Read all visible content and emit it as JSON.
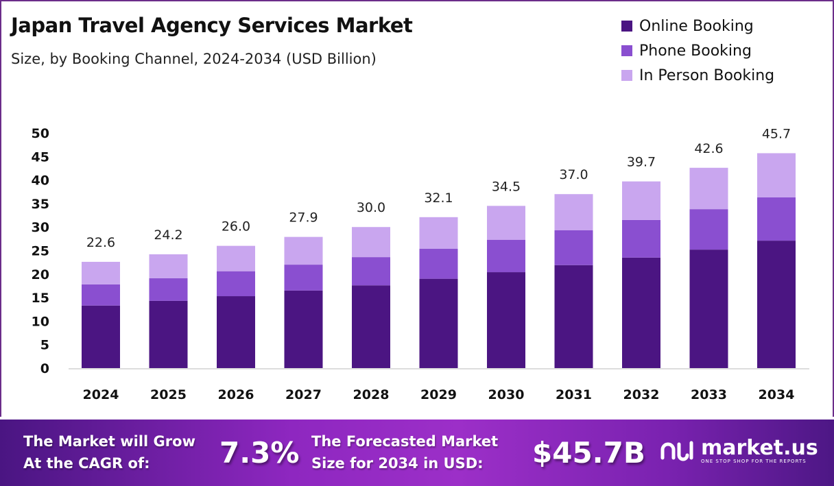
{
  "chart_data": {
    "type": "bar",
    "stacked": true,
    "title": "Japan Travel Agency Services Market",
    "subtitle": "Size, by Booking Channel, 2024-2034 (USD Billion)",
    "categories": [
      "2024",
      "2025",
      "2026",
      "2027",
      "2028",
      "2029",
      "2030",
      "2031",
      "2032",
      "2033",
      "2034"
    ],
    "series": [
      {
        "name": "Online Booking",
        "color": "#4b1582",
        "values": [
          13.3,
          14.3,
          15.3,
          16.5,
          17.6,
          19.0,
          20.4,
          21.9,
          23.5,
          25.2,
          27.1
        ]
      },
      {
        "name": "Phone Booking",
        "color": "#8a4fd0",
        "values": [
          4.5,
          4.8,
          5.3,
          5.5,
          6.0,
          6.4,
          6.9,
          7.4,
          8.0,
          8.6,
          9.2
        ]
      },
      {
        "name": "In Person Booking",
        "color": "#c9a6ef",
        "values": [
          4.8,
          5.1,
          5.4,
          5.9,
          6.4,
          6.7,
          7.2,
          7.7,
          8.2,
          8.8,
          9.4
        ]
      }
    ],
    "totals": [
      "22.6",
      "24.2",
      "26.0",
      "27.9",
      "30.0",
      "32.1",
      "34.5",
      "37.0",
      "39.7",
      "42.6",
      "45.7"
    ],
    "yticks": [
      0,
      5,
      10,
      15,
      20,
      25,
      30,
      35,
      40,
      45,
      50
    ],
    "ylim": [
      0,
      50
    ],
    "grid": false,
    "legend": "top-right"
  },
  "footer": {
    "cagr_text_1": "The Market will Grow",
    "cagr_text_2": "At the CAGR of:",
    "cagr_value": "7.3%",
    "forecast_text_1": "The Forecasted Market",
    "forecast_text_2": "Size for 2034 in USD:",
    "forecast_value": "$45.7B",
    "logo_name": "market.us",
    "logo_tagline": "ONE STOP SHOP FOR THE REPORTS"
  }
}
